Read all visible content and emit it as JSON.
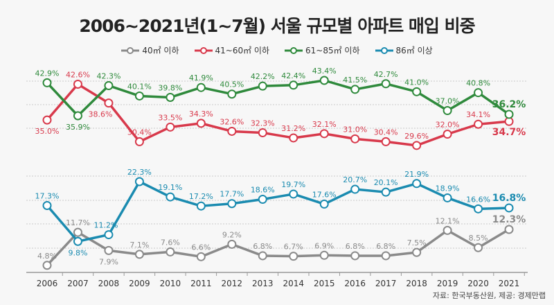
{
  "chart_data": {
    "type": "line",
    "title": "2006~2021년(1~7월) 서울 규모별 아파트 매입 비중",
    "categories": [
      "2006",
      "2007",
      "2008",
      "2009",
      "2010",
      "2011",
      "2012",
      "2013",
      "2014",
      "2015",
      "2016",
      "2017",
      "2018",
      "2019",
      "2020",
      "2021"
    ],
    "series": [
      {
        "name": "40㎡ 이하",
        "color": "#8a8a8a",
        "values": [
          4.8,
          11.7,
          7.9,
          7.1,
          7.6,
          6.6,
          9.2,
          6.8,
          6.7,
          6.9,
          6.8,
          6.8,
          7.5,
          12.1,
          8.5,
          12.3
        ]
      },
      {
        "name": "41~60㎡ 이하",
        "color": "#d8394b",
        "values": [
          35.0,
          42.6,
          38.6,
          30.4,
          33.5,
          34.3,
          32.6,
          32.3,
          31.2,
          32.1,
          31.0,
          30.4,
          29.6,
          32.0,
          34.1,
          34.7
        ]
      },
      {
        "name": "61~85㎡ 이하",
        "color": "#2f8a3c",
        "values": [
          42.9,
          35.9,
          42.3,
          40.1,
          39.8,
          41.9,
          40.5,
          42.2,
          42.4,
          43.4,
          41.5,
          42.7,
          41.0,
          37.0,
          40.8,
          36.2
        ]
      },
      {
        "name": "86㎡ 이상",
        "color": "#1a8bb0",
        "values": [
          17.3,
          9.8,
          11.2,
          22.3,
          19.1,
          17.2,
          17.7,
          18.6,
          19.7,
          17.6,
          20.7,
          20.1,
          21.9,
          18.9,
          16.6,
          16.8
        ]
      }
    ],
    "value_suffix": "%",
    "axis_break": true,
    "grid": true,
    "legend_position": "top"
  },
  "source": "자료: 한국부동산원, 제공: 경제만랩"
}
